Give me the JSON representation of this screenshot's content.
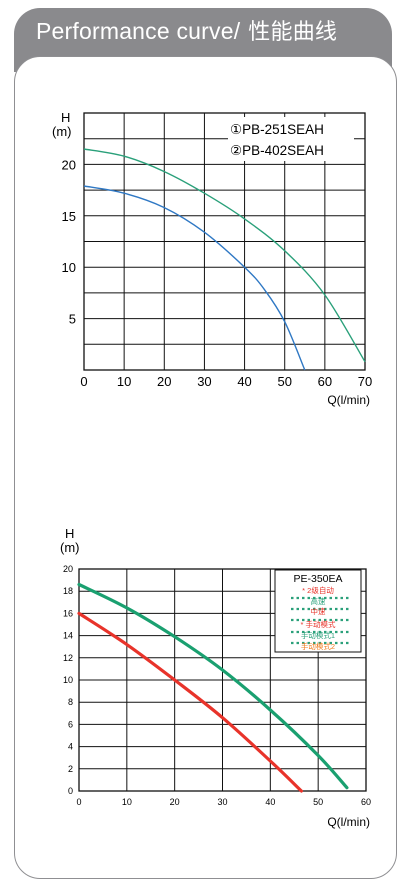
{
  "header": {
    "title_en": "Performance curve/",
    "title_cn": "性能曲线"
  },
  "chart_data": [
    {
      "type": "line",
      "ylabel": "H",
      "yunit": "(m)",
      "xlabel": "Q(l/min)",
      "xlim": [
        0,
        70
      ],
      "ylim": [
        0,
        25
      ],
      "xticks": [
        "0",
        "10",
        "20",
        "30",
        "40",
        "50",
        "60",
        "70"
      ],
      "yticks": [
        "5",
        "10",
        "15",
        "20"
      ],
      "grid": true,
      "legend_position": "top-right",
      "legend": [
        "①PB-251SEAH",
        "②PB-402SEAH"
      ],
      "series": [
        {
          "color": "#2f78c4",
          "x": [
            0,
            10,
            20,
            30,
            40,
            45,
            50,
            55
          ],
          "y": [
            17.9,
            17.2,
            15.8,
            13.4,
            10,
            7.8,
            4.7,
            0
          ]
        },
        {
          "color": "#2aa07a",
          "x": [
            0,
            10,
            20,
            30,
            40,
            50,
            60,
            70
          ],
          "y": [
            21.5,
            20.8,
            19.3,
            17.2,
            14.7,
            11.6,
            7.3,
            0.8
          ]
        }
      ]
    },
    {
      "type": "line",
      "ylabel": "H",
      "yunit": "(m)",
      "xlabel": "Q(l/min)",
      "xlim": [
        0,
        60
      ],
      "ylim": [
        0,
        20
      ],
      "xticks": [
        "0",
        "10",
        "20",
        "30",
        "40",
        "50",
        "60"
      ],
      "yticks": [
        "0",
        "2",
        "4",
        "6",
        "8",
        "10",
        "12",
        "14",
        "16",
        "18",
        "20"
      ],
      "grid": true,
      "legend_position": "top-right",
      "legend_title": "PE-350EA",
      "legend_items": [
        {
          "marker": "*",
          "text": "2级自动",
          "color": "#e8332a"
        },
        {
          "marker": "",
          "text": "高速",
          "color": "#2aa07a"
        },
        {
          "marker": "",
          "text": "中速",
          "color": "#e8332a"
        },
        {
          "marker": "*",
          "text": "手动模式",
          "color": "#e8332a"
        },
        {
          "marker": "",
          "text": "手动模式1",
          "color": "#2aa07a"
        },
        {
          "marker": "",
          "text": "手动模式2",
          "color": "#f07b1d"
        }
      ],
      "series": [
        {
          "color": "#e8332a",
          "x": [
            0,
            10,
            20,
            30,
            40,
            46.5
          ],
          "y": [
            16,
            13.2,
            10,
            6.6,
            2.7,
            0
          ]
        },
        {
          "color": "#1aa070",
          "x": [
            0,
            10,
            20,
            30,
            40,
            50,
            56
          ],
          "y": [
            18.6,
            16.5,
            13.9,
            10.9,
            7.3,
            3.2,
            0.3
          ]
        }
      ]
    }
  ]
}
